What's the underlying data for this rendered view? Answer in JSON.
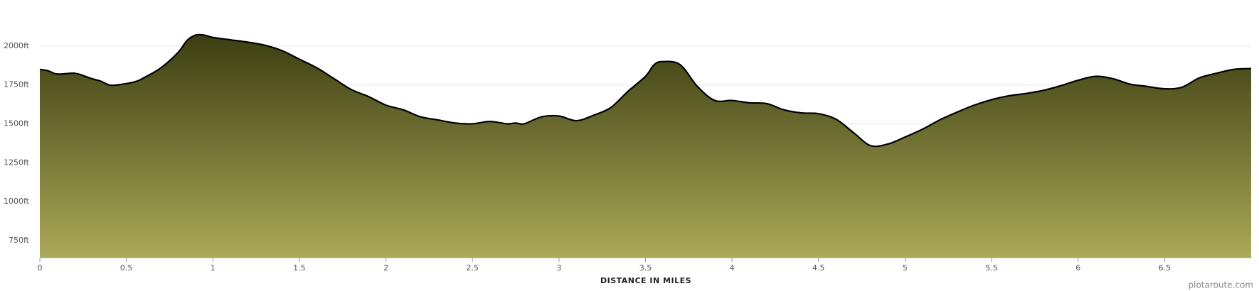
{
  "chart_data": {
    "type": "area",
    "x_label": "DISTANCE IN MILES",
    "watermark": "plotaroute.com",
    "x": [
      0,
      0.05,
      0.1,
      0.2,
      0.25,
      0.3,
      0.35,
      0.4,
      0.45,
      0.55,
      0.6,
      0.7,
      0.8,
      0.85,
      0.9,
      0.95,
      1.0,
      1.1,
      1.2,
      1.3,
      1.4,
      1.5,
      1.6,
      1.7,
      1.8,
      1.9,
      2.0,
      2.1,
      2.2,
      2.3,
      2.4,
      2.5,
      2.6,
      2.7,
      2.75,
      2.8,
      2.9,
      3.0,
      3.1,
      3.2,
      3.3,
      3.4,
      3.5,
      3.55,
      3.6,
      3.7,
      3.8,
      3.9,
      4.0,
      4.1,
      4.2,
      4.3,
      4.4,
      4.5,
      4.6,
      4.7,
      4.8,
      4.9,
      5.0,
      5.1,
      5.2,
      5.3,
      5.4,
      5.5,
      5.6,
      5.7,
      5.8,
      5.9,
      6.0,
      6.1,
      6.2,
      6.3,
      6.4,
      6.5,
      6.6,
      6.7,
      6.8,
      6.9,
      7.0
    ],
    "values": [
      1850,
      1840,
      1820,
      1825,
      1810,
      1790,
      1775,
      1750,
      1750,
      1770,
      1795,
      1860,
      1960,
      2035,
      2070,
      2070,
      2055,
      2040,
      2025,
      2005,
      1970,
      1915,
      1860,
      1790,
      1720,
      1675,
      1620,
      1590,
      1545,
      1525,
      1505,
      1500,
      1515,
      1500,
      1505,
      1500,
      1545,
      1550,
      1520,
      1555,
      1605,
      1710,
      1805,
      1880,
      1900,
      1880,
      1740,
      1650,
      1650,
      1635,
      1630,
      1590,
      1570,
      1565,
      1530,
      1445,
      1360,
      1370,
      1415,
      1465,
      1525,
      1575,
      1620,
      1655,
      1680,
      1695,
      1715,
      1745,
      1780,
      1805,
      1790,
      1755,
      1740,
      1725,
      1735,
      1795,
      1825,
      1850,
      1855
    ],
    "color": "#000000",
    "fill_colors": [
      "#3c3d12",
      "#aaaa57"
    ],
    "xlim": [
      0,
      7
    ],
    "ylim": [
      640,
      2250
    ],
    "xticks": [
      0,
      0.5,
      1,
      1.5,
      2,
      2.5,
      3,
      3.5,
      4,
      4.5,
      5,
      5.5,
      6,
      6.5
    ],
    "yticks": [
      {
        "value": 750,
        "label": "750ft"
      },
      {
        "value": 1000,
        "label": "1000ft"
      },
      {
        "value": 1250,
        "label": "1250ft"
      },
      {
        "value": 1500,
        "label": "1500ft"
      },
      {
        "value": 1750,
        "label": "1750ft"
      },
      {
        "value": 2000,
        "label": "2000ft"
      }
    ],
    "grid": true
  }
}
